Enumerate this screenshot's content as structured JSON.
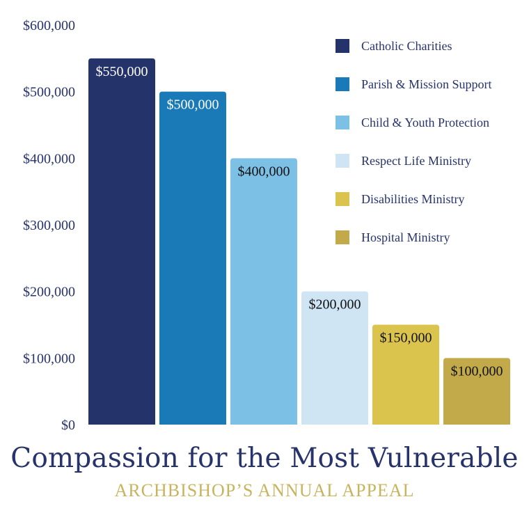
{
  "title": "Compassion for the Most Vulnerable",
  "subtitle": "ARCHBISHOP’S ANNUAL APPEAL",
  "chart_data": {
    "type": "bar",
    "categories": [
      "Catholic Charities",
      "Parish & Mission Support",
      "Child & Youth Protection",
      "Respect Life Ministry",
      "Disabilities Ministry",
      "Hospital Ministry"
    ],
    "values": [
      550000,
      500000,
      400000,
      200000,
      150000,
      100000
    ],
    "value_labels": [
      "$550,000",
      "$500,000",
      "$400,000",
      "$200,000",
      "$150,000",
      "$100,000"
    ],
    "colors": [
      "#24336a",
      "#1a7ab8",
      "#7cc0e5",
      "#cfe5f4",
      "#dbc44d",
      "#c2aa4a"
    ],
    "label_colors": [
      "#ffffff",
      "#ffffff",
      "#111111",
      "#111111",
      "#111111",
      "#111111"
    ],
    "ylim": [
      0,
      600000
    ],
    "yticks": [
      0,
      100000,
      200000,
      300000,
      400000,
      500000,
      600000
    ],
    "ytick_labels": [
      "$0",
      "$100,000",
      "$200,000",
      "$300,000",
      "$400,000",
      "$500,000",
      "$600,000"
    ],
    "legend_position": "top-right",
    "grid": false,
    "axis_text_color": "#27336b"
  }
}
